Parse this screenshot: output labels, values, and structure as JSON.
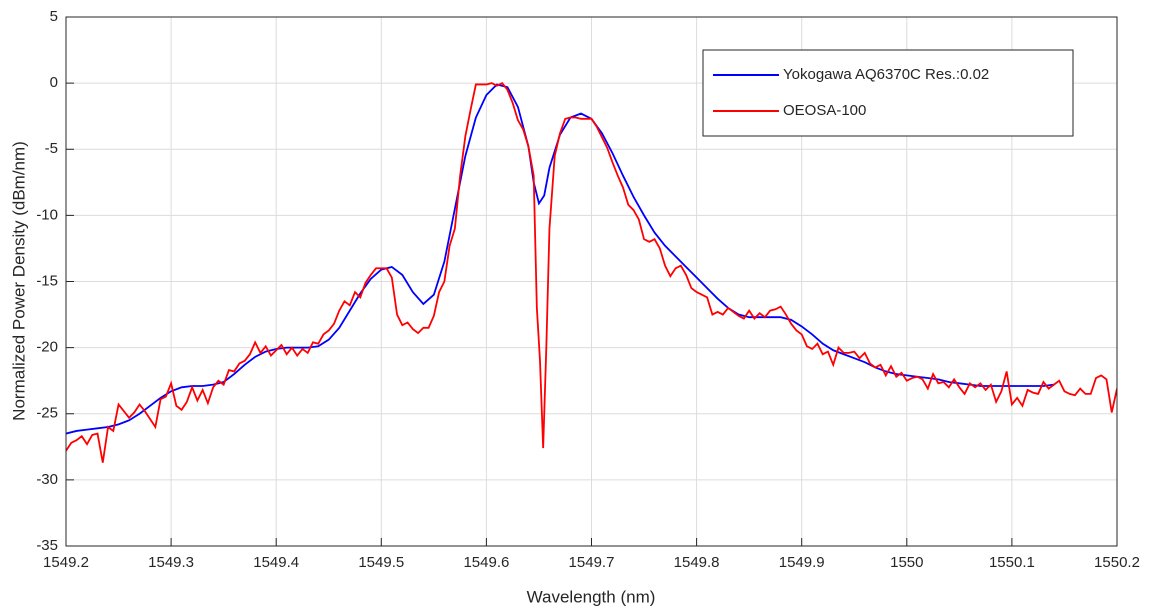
{
  "chart_data": {
    "type": "line",
    "xlabel": "Wavelength (nm)",
    "ylabel": "Normalized Power Density (dBm/nm)",
    "xlim": [
      1549.2,
      1550.2
    ],
    "xticks": [
      1549.2,
      1549.3,
      1549.4,
      1549.5,
      1549.6,
      1549.7,
      1549.8,
      1549.9,
      1550,
      1550.1,
      1550.2
    ],
    "ylim": [
      -35,
      5
    ],
    "yticks": [
      5,
      0,
      -5,
      -10,
      -15,
      -20,
      -25,
      -30,
      -35
    ],
    "grid": true,
    "legend": "upper right",
    "series": [
      {
        "name": "Yokogawa AQ6370C Res.:0.02",
        "color": "#0000ff",
        "x": [
          1549.2,
          1549.21,
          1549.22,
          1549.23,
          1549.24,
          1549.25,
          1549.26,
          1549.27,
          1549.28,
          1549.29,
          1549.3,
          1549.31,
          1549.32,
          1549.33,
          1549.34,
          1549.35,
          1549.36,
          1549.37,
          1549.38,
          1549.39,
          1549.4,
          1549.41,
          1549.42,
          1549.43,
          1549.44,
          1549.45,
          1549.46,
          1549.47,
          1549.48,
          1549.49,
          1549.5,
          1549.51,
          1549.52,
          1549.53,
          1549.54,
          1549.55,
          1549.56,
          1549.57,
          1549.58,
          1549.59,
          1549.6,
          1549.61,
          1549.62,
          1549.63,
          1549.64,
          1549.645,
          1549.65,
          1549.655,
          1549.66,
          1549.67,
          1549.68,
          1549.69,
          1549.7,
          1549.71,
          1549.72,
          1549.73,
          1549.74,
          1549.75,
          1549.76,
          1549.77,
          1549.78,
          1549.79,
          1549.8,
          1549.81,
          1549.82,
          1549.83,
          1549.84,
          1549.85,
          1549.86,
          1549.87,
          1549.88,
          1549.89,
          1549.9,
          1549.91,
          1549.92,
          1549.93,
          1549.94,
          1549.95,
          1549.96,
          1549.97,
          1549.98,
          1549.99,
          1550.0,
          1550.01,
          1550.02,
          1550.03,
          1550.04,
          1550.05,
          1550.06,
          1550.07,
          1550.08,
          1550.09,
          1550.1,
          1550.11,
          1550.12,
          1550.13,
          1550.14
        ],
        "values": [
          -26.5,
          -26.3,
          -26.2,
          -26.1,
          -26.0,
          -25.8,
          -25.5,
          -25.0,
          -24.4,
          -23.8,
          -23.3,
          -23.0,
          -22.9,
          -22.9,
          -22.8,
          -22.6,
          -22.0,
          -21.3,
          -20.7,
          -20.3,
          -20.1,
          -20.0,
          -20.0,
          -20.0,
          -19.9,
          -19.4,
          -18.5,
          -17.2,
          -15.9,
          -14.8,
          -14.1,
          -13.9,
          -14.5,
          -15.8,
          -16.7,
          -16.0,
          -13.5,
          -9.5,
          -5.5,
          -2.6,
          -0.9,
          -0.1,
          -0.3,
          -1.8,
          -4.8,
          -7.5,
          -9.1,
          -8.5,
          -6.4,
          -3.9,
          -2.6,
          -2.3,
          -2.7,
          -3.8,
          -5.3,
          -7.0,
          -8.6,
          -10.0,
          -11.3,
          -12.3,
          -13.1,
          -13.9,
          -14.7,
          -15.5,
          -16.3,
          -17.0,
          -17.5,
          -17.7,
          -17.7,
          -17.7,
          -17.7,
          -17.9,
          -18.4,
          -19.0,
          -19.7,
          -20.2,
          -20.5,
          -20.8,
          -21.1,
          -21.5,
          -21.8,
          -22.0,
          -22.1,
          -22.2,
          -22.3,
          -22.4,
          -22.6,
          -22.7,
          -22.8,
          -22.9,
          -22.9,
          -22.9,
          -22.9,
          -22.9,
          -22.9,
          -22.9,
          -22.8
        ]
      },
      {
        "name": "OEOSA-100",
        "color": "#ff0000",
        "x": [
          1549.2,
          1549.205,
          1549.21,
          1549.215,
          1549.22,
          1549.225,
          1549.23,
          1549.235,
          1549.24,
          1549.245,
          1549.25,
          1549.255,
          1549.26,
          1549.265,
          1549.27,
          1549.275,
          1549.28,
          1549.285,
          1549.29,
          1549.295,
          1549.3,
          1549.305,
          1549.31,
          1549.315,
          1549.32,
          1549.325,
          1549.33,
          1549.335,
          1549.34,
          1549.345,
          1549.35,
          1549.355,
          1549.36,
          1549.365,
          1549.37,
          1549.375,
          1549.38,
          1549.385,
          1549.39,
          1549.395,
          1549.4,
          1549.405,
          1549.41,
          1549.415,
          1549.42,
          1549.425,
          1549.43,
          1549.435,
          1549.44,
          1549.445,
          1549.45,
          1549.455,
          1549.46,
          1549.465,
          1549.47,
          1549.475,
          1549.48,
          1549.485,
          1549.49,
          1549.495,
          1549.5,
          1549.505,
          1549.51,
          1549.515,
          1549.52,
          1549.525,
          1549.53,
          1549.535,
          1549.54,
          1549.545,
          1549.55,
          1549.555,
          1549.56,
          1549.565,
          1549.57,
          1549.575,
          1549.58,
          1549.585,
          1549.59,
          1549.595,
          1549.6,
          1549.605,
          1549.61,
          1549.615,
          1549.62,
          1549.625,
          1549.63,
          1549.635,
          1549.64,
          1549.645,
          1549.648,
          1549.651,
          1549.654,
          1549.657,
          1549.66,
          1549.665,
          1549.67,
          1549.675,
          1549.68,
          1549.685,
          1549.69,
          1549.695,
          1549.7,
          1549.705,
          1549.71,
          1549.715,
          1549.72,
          1549.725,
          1549.73,
          1549.735,
          1549.74,
          1549.745,
          1549.75,
          1549.755,
          1549.76,
          1549.765,
          1549.77,
          1549.775,
          1549.78,
          1549.785,
          1549.79,
          1549.795,
          1549.8,
          1549.805,
          1549.81,
          1549.815,
          1549.82,
          1549.825,
          1549.83,
          1549.835,
          1549.84,
          1549.845,
          1549.85,
          1549.855,
          1549.86,
          1549.865,
          1549.87,
          1549.875,
          1549.88,
          1549.885,
          1549.89,
          1549.895,
          1549.9,
          1549.905,
          1549.91,
          1549.915,
          1549.92,
          1549.925,
          1549.93,
          1549.935,
          1549.94,
          1549.945,
          1549.95,
          1549.955,
          1549.96,
          1549.965,
          1549.97,
          1549.975,
          1549.98,
          1549.985,
          1549.99,
          1549.995,
          1550.0,
          1550.005,
          1550.01,
          1550.015,
          1550.02,
          1550.025,
          1550.03,
          1550.035,
          1550.04,
          1550.045,
          1550.05,
          1550.055,
          1550.06,
          1550.065,
          1550.07,
          1550.075,
          1550.08,
          1550.085,
          1550.09,
          1550.095,
          1550.1,
          1550.105,
          1550.11,
          1550.115,
          1550.12,
          1550.125,
          1550.13,
          1550.135,
          1550.14,
          1550.145,
          1550.15,
          1550.155,
          1550.16,
          1550.165,
          1550.17,
          1550.175,
          1550.18,
          1550.185,
          1550.19,
          1550.195,
          1550.2
        ],
        "values": [
          -27.8,
          -27.2,
          -27.0,
          -26.7,
          -27.3,
          -26.6,
          -26.5,
          -28.7,
          -26.0,
          -26.3,
          -24.3,
          -24.8,
          -25.3,
          -24.9,
          -24.3,
          -24.8,
          -25.4,
          -26.0,
          -23.9,
          -23.7,
          -22.7,
          -24.4,
          -24.7,
          -24.1,
          -23.0,
          -24.0,
          -23.2,
          -24.2,
          -23.0,
          -22.5,
          -22.8,
          -21.7,
          -21.8,
          -21.2,
          -21.0,
          -20.5,
          -19.6,
          -20.4,
          -19.9,
          -20.6,
          -20.2,
          -19.8,
          -20.5,
          -20.0,
          -20.6,
          -20.1,
          -20.4,
          -19.6,
          -19.7,
          -19.0,
          -18.7,
          -18.2,
          -17.2,
          -16.5,
          -16.8,
          -15.8,
          -16.2,
          -15.1,
          -14.5,
          -14.0,
          -14.0,
          -14.0,
          -14.7,
          -17.5,
          -18.3,
          -18.1,
          -18.6,
          -18.9,
          -18.5,
          -18.5,
          -17.6,
          -15.8,
          -15.0,
          -12.3,
          -11.0,
          -7.0,
          -4.0,
          -2.0,
          -0.1,
          -0.1,
          -0.1,
          0,
          -0.2,
          0,
          -0.5,
          -1.5,
          -2.8,
          -3.5,
          -4.8,
          -7.0,
          -17.0,
          -21.0,
          -27.6,
          -20.0,
          -11.0,
          -5.5,
          -3.8,
          -2.7,
          -2.6,
          -2.6,
          -2.7,
          -2.7,
          -2.7,
          -3.3,
          -4.1,
          -4.9,
          -6.0,
          -7.0,
          -7.9,
          -9.2,
          -9.6,
          -10.3,
          -11.8,
          -12.0,
          -11.8,
          -12.5,
          -13.8,
          -14.6,
          -14.0,
          -13.8,
          -14.5,
          -15.5,
          -15.8,
          -16.0,
          -16.2,
          -17.5,
          -17.3,
          -17.5,
          -17.0,
          -17.3,
          -17.6,
          -17.8,
          -17.2,
          -17.8,
          -17.4,
          -17.7,
          -17.2,
          -17.1,
          -16.9,
          -17.5,
          -18.2,
          -18.7,
          -19.0,
          -19.9,
          -20.1,
          -19.7,
          -20.5,
          -20.3,
          -21.3,
          -20.0,
          -20.4,
          -20.4,
          -20.3,
          -20.8,
          -20.4,
          -21.2,
          -21.5,
          -21.3,
          -22.1,
          -21.4,
          -22.2,
          -21.9,
          -22.5,
          -22.3,
          -22.2,
          -22.4,
          -23.1,
          -22.0,
          -22.7,
          -22.6,
          -23.0,
          -22.4,
          -23.0,
          -23.5,
          -22.7,
          -23.0,
          -22.7,
          -23.2,
          -22.8,
          -24.1,
          -23.3,
          -21.8,
          -24.3,
          -23.8,
          -24.4,
          -23.2,
          -23.4,
          -23.5,
          -22.6,
          -23.1,
          -22.8,
          -22.5,
          -23.3,
          -23.5,
          -23.6,
          -23.1,
          -23.5,
          -23.5,
          -22.3,
          -22.1,
          -22.4,
          -24.9,
          -23.1
        ]
      }
    ]
  }
}
